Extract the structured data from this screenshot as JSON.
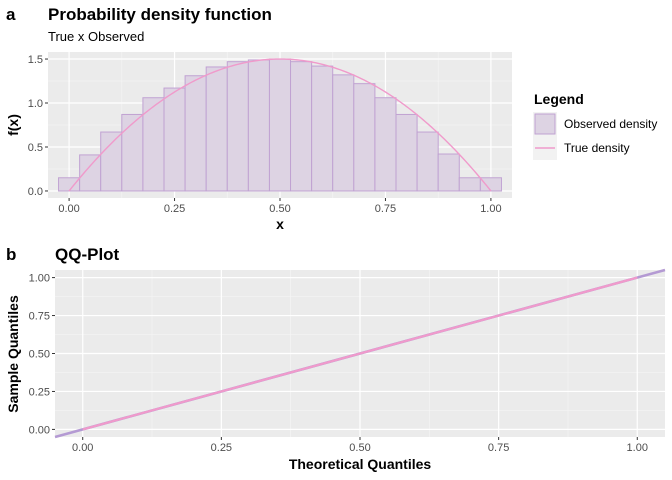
{
  "chart_data": [
    {
      "panel_tag": "a",
      "type": "bar",
      "title": "Probability density function",
      "subtitle": "True x Observed",
      "xlabel": "x",
      "ylabel": "f(x)",
      "xlim": [
        -0.05,
        1.05
      ],
      "ylim": [
        -0.08,
        1.58
      ],
      "xticks": [
        0.0,
        0.25,
        0.5,
        0.75,
        1.0
      ],
      "xtick_labels": [
        "0.00",
        "0.25",
        "0.50",
        "0.75",
        "1.00"
      ],
      "yticks": [
        0.0,
        0.5,
        1.0,
        1.5
      ],
      "ytick_labels": [
        "0.0",
        "0.5",
        "1.0",
        "1.5"
      ],
      "grid": true,
      "bin_width": 0.05,
      "bin_centers": [
        0.0,
        0.05,
        0.1,
        0.15,
        0.2,
        0.25,
        0.3,
        0.35,
        0.4,
        0.45,
        0.5,
        0.55,
        0.6,
        0.65,
        0.7,
        0.75,
        0.8,
        0.85,
        0.9,
        0.95,
        1.0
      ],
      "series": [
        {
          "name": "Observed density",
          "kind": "histogram",
          "values": [
            0.15,
            0.41,
            0.67,
            0.87,
            1.06,
            1.17,
            1.31,
            1.41,
            1.47,
            1.49,
            1.5,
            1.47,
            1.42,
            1.32,
            1.22,
            1.06,
            0.87,
            0.67,
            0.42,
            0.15,
            0.15
          ],
          "fill": "#ddd3e3",
          "stroke": "#c0a2d2"
        },
        {
          "name": "True density",
          "kind": "line",
          "function": "1.5*(1-(2x-1)^2)",
          "color": "#f09acb"
        }
      ],
      "legend": {
        "title": "Legend",
        "placement": "right",
        "entries": [
          "Observed density",
          "True density"
        ]
      }
    },
    {
      "panel_tag": "b",
      "type": "line",
      "title": "QQ-Plot",
      "xlabel": "Theoretical Quantiles",
      "ylabel": "Sample Quantiles",
      "xlim": [
        -0.05,
        1.05
      ],
      "ylim": [
        -0.05,
        1.05
      ],
      "xticks": [
        0.0,
        0.25,
        0.5,
        0.75,
        1.0
      ],
      "xtick_labels": [
        "0.00",
        "0.25",
        "0.50",
        "0.75",
        "1.00"
      ],
      "yticks": [
        0.0,
        0.25,
        0.5,
        0.75,
        1.0
      ],
      "ytick_labels": [
        "0.00",
        "0.25",
        "0.50",
        "0.75",
        "1.00"
      ],
      "grid": true,
      "series": [
        {
          "kind": "reference-line",
          "x": [
            -0.05,
            1.05
          ],
          "y": [
            -0.05,
            1.05
          ],
          "color": "#b49ad3"
        },
        {
          "kind": "sample-line",
          "x": [
            0.0,
            1.0
          ],
          "y": [
            0.0,
            1.0
          ],
          "color": "#f09acb"
        }
      ]
    }
  ]
}
